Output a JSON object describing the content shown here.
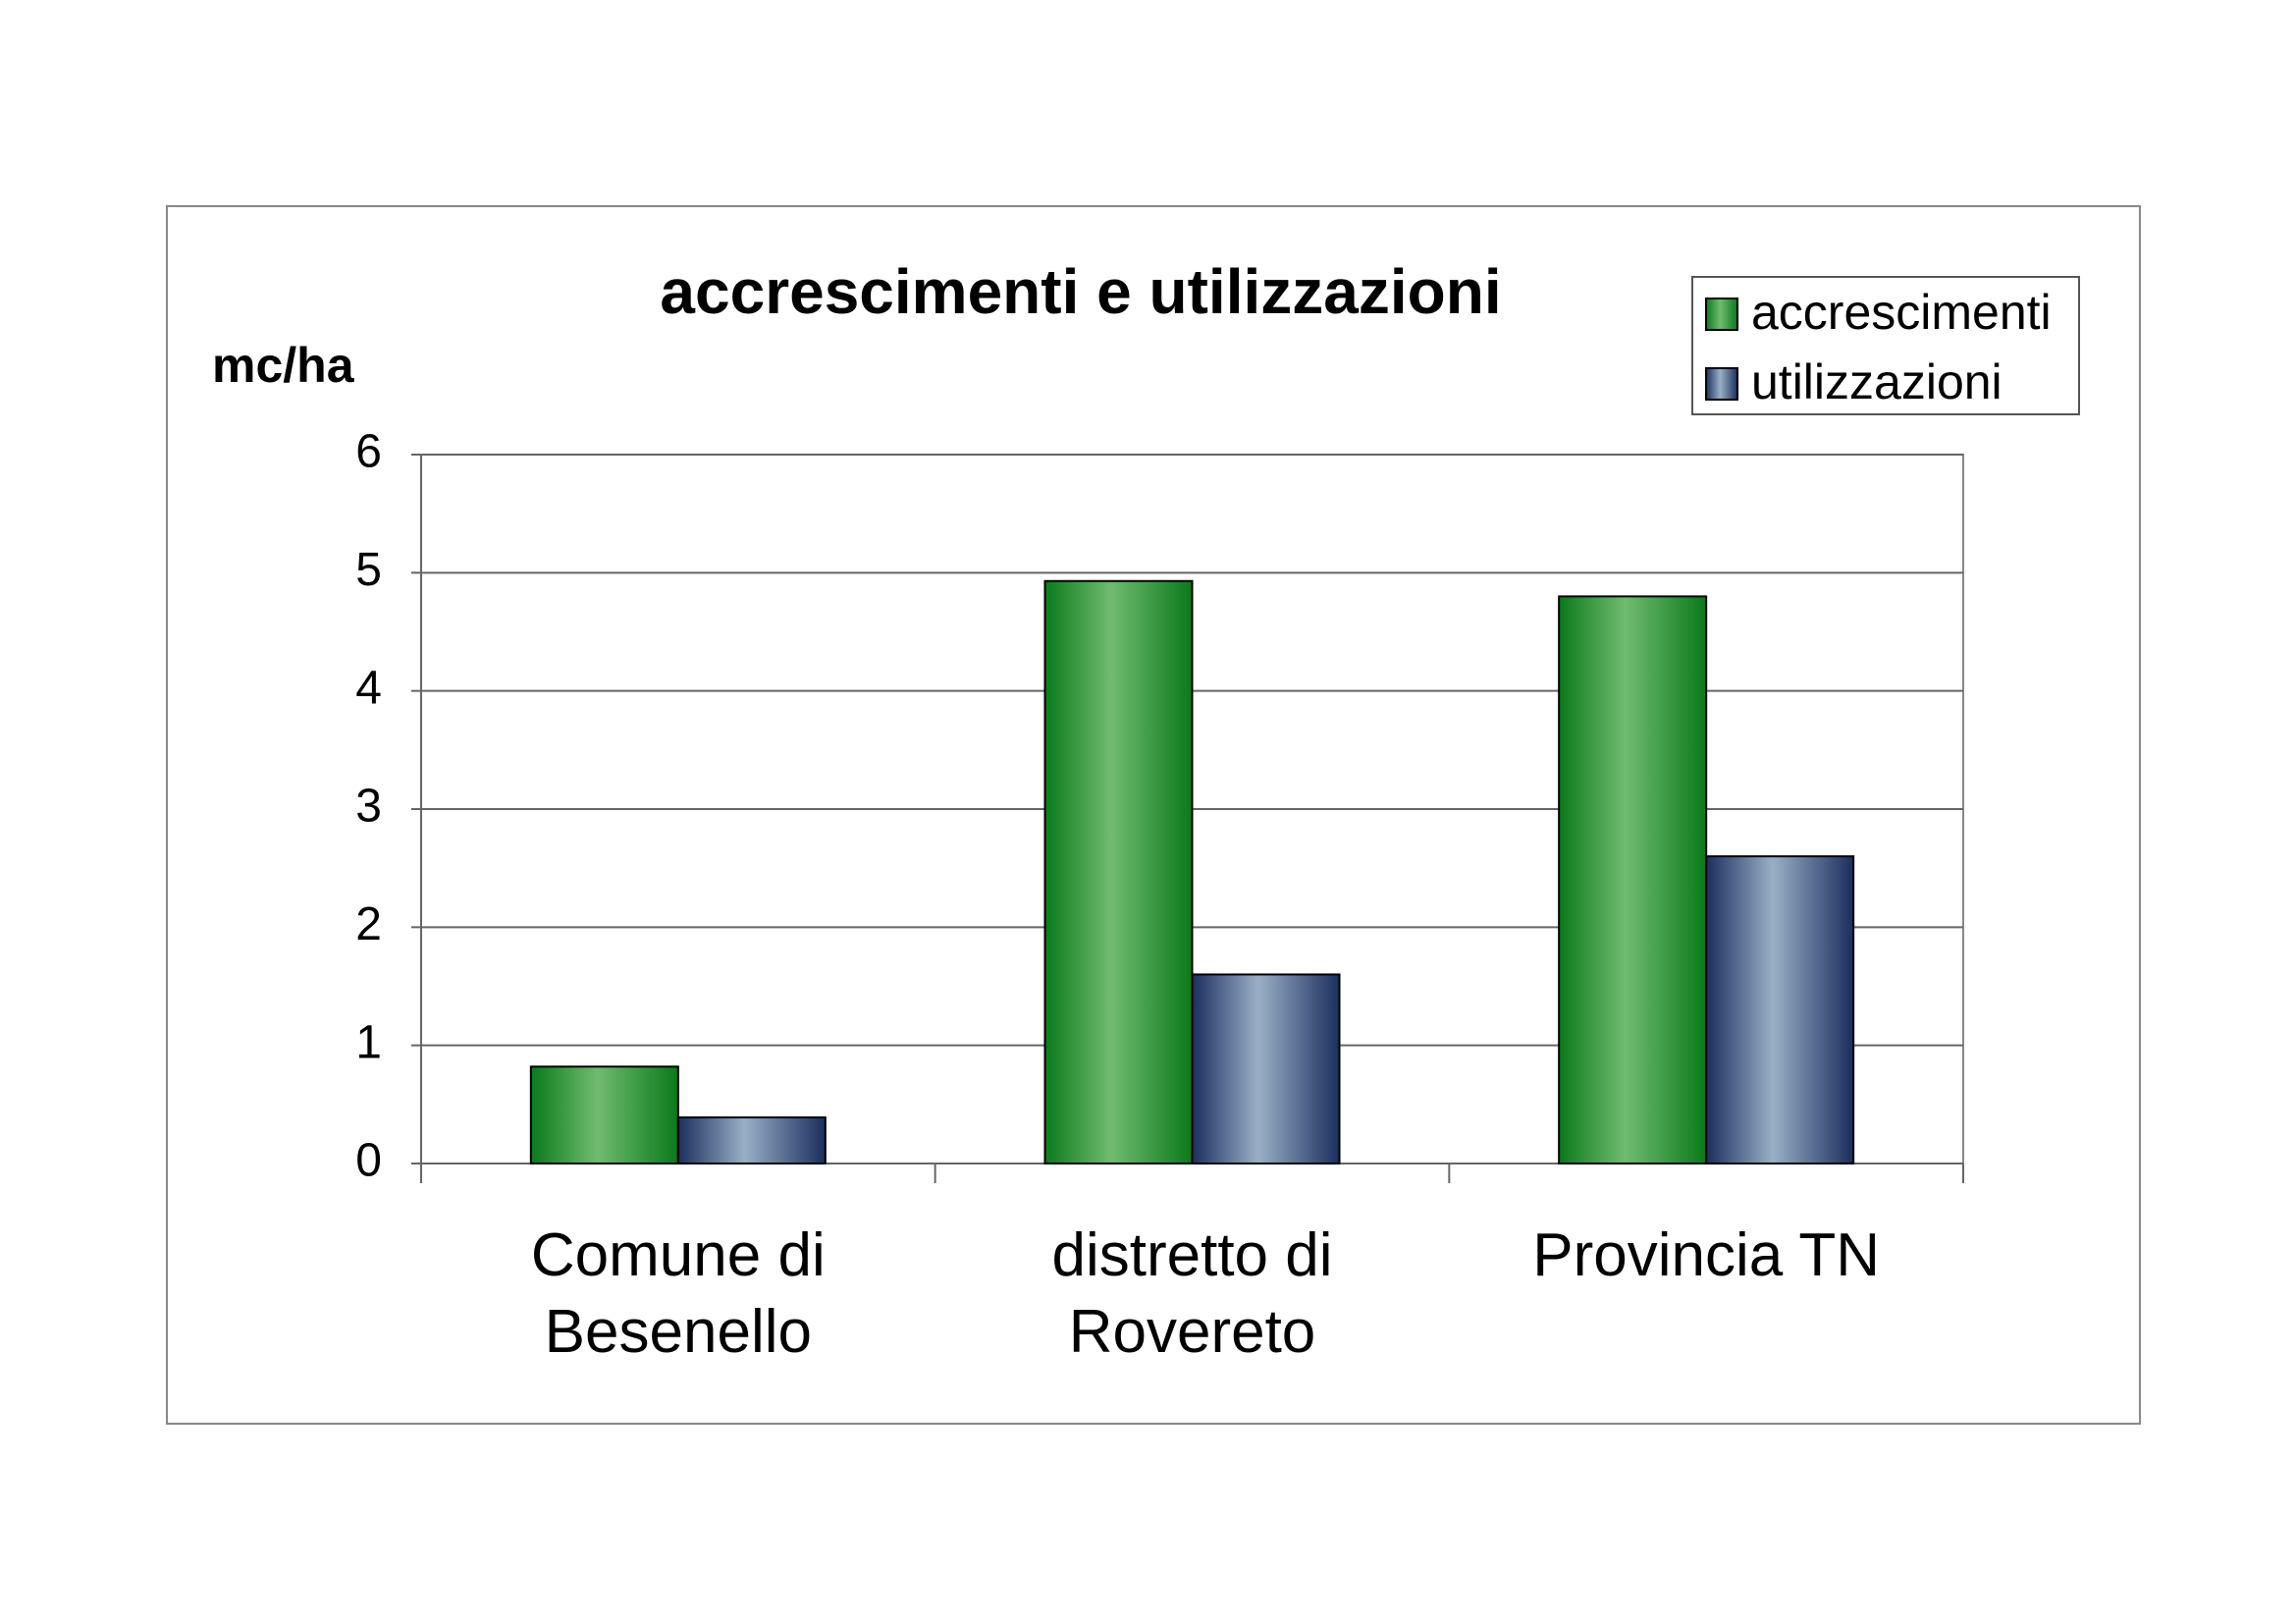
{
  "chart_data": {
    "type": "bar",
    "title": "accrescimenti e utilizzazioni",
    "y_label": "mc/ha",
    "categories": [
      "Comune di Besenello",
      "distretto di Rovereto",
      "Provincia TN"
    ],
    "series": [
      {
        "name": "accrescimenti",
        "color": "#70bb70",
        "values": [
          0.82,
          4.93,
          4.8
        ]
      },
      {
        "name": "utilizzazioni",
        "color": "#9aafc6",
        "values": [
          0.39,
          1.6,
          2.6
        ]
      }
    ],
    "ylim": [
      0,
      6
    ],
    "yticks": [
      0,
      1,
      2,
      3,
      4,
      5,
      6
    ],
    "grid": true,
    "legend": "top-right"
  }
}
